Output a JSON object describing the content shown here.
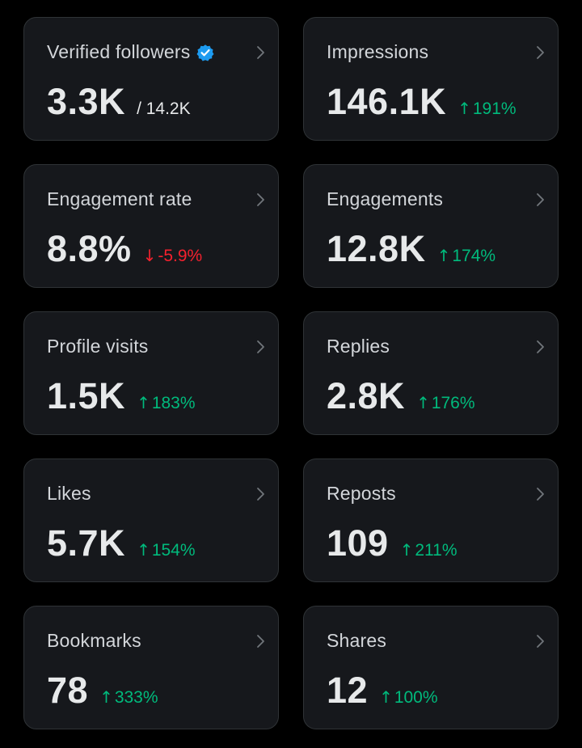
{
  "cards": [
    {
      "title": "Verified followers",
      "value": "3.3K",
      "secondary": "/ 14.2K",
      "verified": true
    },
    {
      "title": "Impressions",
      "value": "146.1K",
      "change": "191%",
      "direction": "up"
    },
    {
      "title": "Engagement rate",
      "value": "8.8%",
      "change": "-5.9%",
      "direction": "down"
    },
    {
      "title": "Engagements",
      "value": "12.8K",
      "change": "174%",
      "direction": "up"
    },
    {
      "title": "Profile visits",
      "value": "1.5K",
      "change": "183%",
      "direction": "up"
    },
    {
      "title": "Replies",
      "value": "2.8K",
      "change": "176%",
      "direction": "up"
    },
    {
      "title": "Likes",
      "value": "5.7K",
      "change": "154%",
      "direction": "up"
    },
    {
      "title": "Reposts",
      "value": "109",
      "change": "211%",
      "direction": "up"
    },
    {
      "title": "Bookmarks",
      "value": "78",
      "change": "333%",
      "direction": "up"
    },
    {
      "title": "Shares",
      "value": "12",
      "change": "100%",
      "direction": "up"
    }
  ],
  "arrows": {
    "up": "↑",
    "down": "↓"
  },
  "icons": {
    "verified": "verified-badge-icon",
    "chevron": "chevron-right-icon"
  },
  "colors": {
    "up": "#00ba7c",
    "down": "#f4212e",
    "verified": "#1d9bf0"
  }
}
